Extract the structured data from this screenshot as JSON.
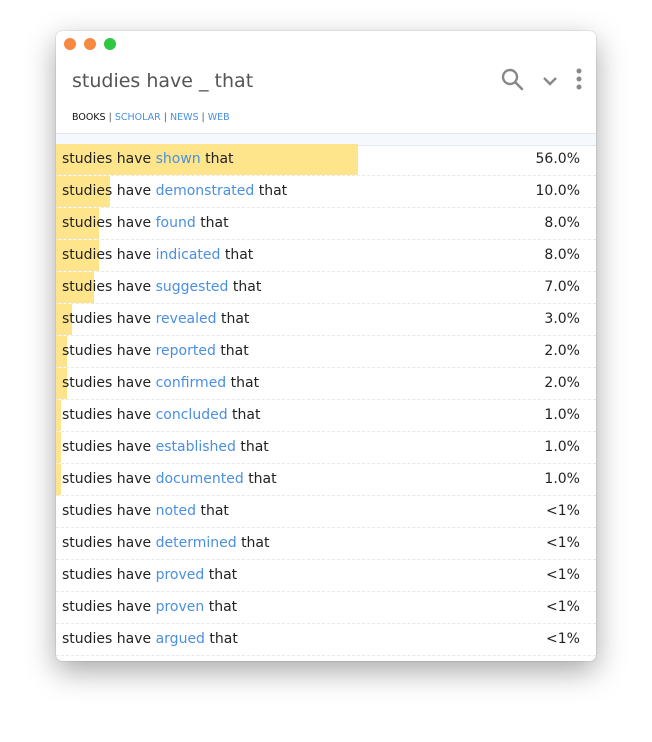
{
  "window": {
    "title": "studies have _ that",
    "traffic_lights": [
      "#f7883f",
      "#f7883f",
      "#2dc840"
    ]
  },
  "toolbar": {
    "icons": [
      "search-icon",
      "chevron-down-icon",
      "more-vertical-icon"
    ]
  },
  "tabs": [
    {
      "label": "BOOKS",
      "active": true
    },
    {
      "label": "SCHOLAR"
    },
    {
      "label": "NEWS"
    },
    {
      "label": "WEB"
    }
  ],
  "colors": {
    "bar": "#fee58b",
    "highlight": "#4a8fe0"
  },
  "results": [
    {
      "prefix": "studies have",
      "word": "shown",
      "suffix": "that",
      "percent": "56.0%",
      "value": 56
    },
    {
      "prefix": "studies have",
      "word": "demonstrated",
      "suffix": "that",
      "percent": "10.0%",
      "value": 10
    },
    {
      "prefix": "studies have",
      "word": "found",
      "suffix": "that",
      "percent": "8.0%",
      "value": 8
    },
    {
      "prefix": "studies have",
      "word": "indicated",
      "suffix": "that",
      "percent": "8.0%",
      "value": 8
    },
    {
      "prefix": "studies have",
      "word": "suggested",
      "suffix": "that",
      "percent": "7.0%",
      "value": 7
    },
    {
      "prefix": "studies have",
      "word": "revealed",
      "suffix": "that",
      "percent": "3.0%",
      "value": 3
    },
    {
      "prefix": "studies have",
      "word": "reported",
      "suffix": "that",
      "percent": "2.0%",
      "value": 2
    },
    {
      "prefix": "studies have",
      "word": "confirmed",
      "suffix": "that",
      "percent": "2.0%",
      "value": 2
    },
    {
      "prefix": "studies have",
      "word": "concluded",
      "suffix": "that",
      "percent": "1.0%",
      "value": 1
    },
    {
      "prefix": "studies have",
      "word": "established",
      "suffix": "that",
      "percent": "1.0%",
      "value": 1
    },
    {
      "prefix": "studies have",
      "word": "documented",
      "suffix": "that",
      "percent": "1.0%",
      "value": 1
    },
    {
      "prefix": "studies have",
      "word": "noted",
      "suffix": "that",
      "percent": "<1%",
      "value": 0
    },
    {
      "prefix": "studies have",
      "word": "determined",
      "suffix": "that",
      "percent": "<1%",
      "value": 0
    },
    {
      "prefix": "studies have",
      "word": "proved",
      "suffix": "that",
      "percent": "<1%",
      "value": 0
    },
    {
      "prefix": "studies have",
      "word": "proven",
      "suffix": "that",
      "percent": "<1%",
      "value": 0
    },
    {
      "prefix": "studies have",
      "word": "argued",
      "suffix": "that",
      "percent": "<1%",
      "value": 0
    }
  ]
}
